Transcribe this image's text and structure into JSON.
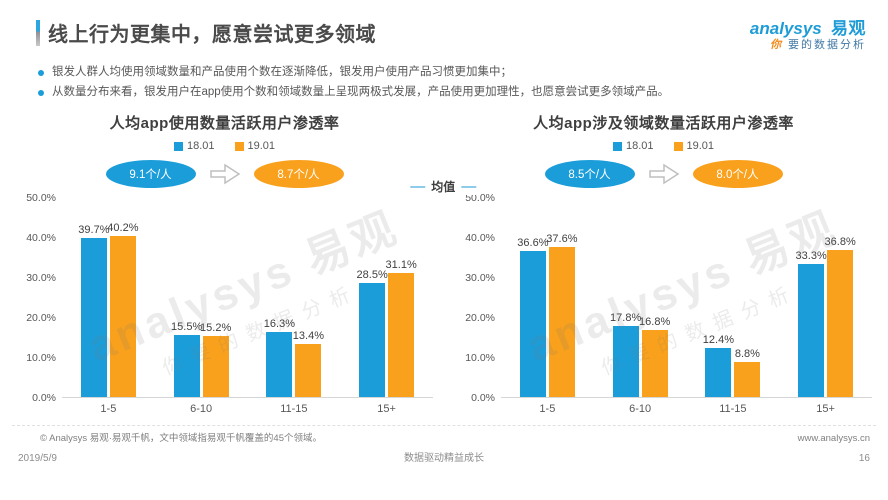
{
  "header": {
    "title": "线上行为更集中，愿意尝试更多领域",
    "logo": {
      "name_en": "analysys",
      "name_cn": "易观",
      "tagline_first": "你",
      "tagline_rest": "要的数据分析"
    }
  },
  "bullets": [
    "银发人群人均使用领域数量和产品使用个数在逐渐降低，银发用户使用产品习惯更加集中；",
    "从数量分布来看，银发用户在app使用个数和领域数量上呈现两极式发展，产品使用更加理性，也愿意尝试更多领域产品。"
  ],
  "mean_legend": "均值",
  "colors": {
    "blue": "#1b9dd9",
    "orange": "#f9a11c"
  },
  "watermark": {
    "line1": "analysys 易观",
    "line2": "你要的数据分析"
  },
  "chart_data": [
    {
      "type": "bar",
      "title": "人均app使用数量活跃用户渗透率",
      "categories": [
        "1-5",
        "6-10",
        "11-15",
        "15+"
      ],
      "series": [
        {
          "name": "18.01",
          "color": "#1b9dd9",
          "values": [
            39.7,
            15.5,
            16.3,
            28.5
          ]
        },
        {
          "name": "19.01",
          "color": "#f9a11c",
          "values": [
            40.2,
            15.2,
            13.4,
            31.1
          ]
        }
      ],
      "ylabel": "活跃用户渗透率",
      "ylim": [
        0,
        50
      ],
      "yticks": [
        "0.0%",
        "10.0%",
        "20.0%",
        "30.0%",
        "40.0%",
        "50.0%"
      ],
      "legend_position": "top",
      "grid": false,
      "average_from": "9.1个/人",
      "average_to": "8.7个/人"
    },
    {
      "type": "bar",
      "title": "人均app涉及领域数量活跃用户渗透率",
      "categories": [
        "1-5",
        "6-10",
        "11-15",
        "15+"
      ],
      "series": [
        {
          "name": "18.01",
          "color": "#1b9dd9",
          "values": [
            36.6,
            17.8,
            12.4,
            33.3
          ]
        },
        {
          "name": "19.01",
          "color": "#f9a11c",
          "values": [
            37.6,
            16.8,
            8.8,
            36.8
          ]
        }
      ],
      "ylabel": "活跃用户渗透率",
      "ylim": [
        0,
        50
      ],
      "yticks": [
        "0.0%",
        "10.0%",
        "20.0%",
        "30.0%",
        "40.0%",
        "50.0%"
      ],
      "legend_position": "top",
      "grid": false,
      "average_from": "8.5个/人",
      "average_to": "8.0个/人"
    }
  ],
  "footer": {
    "note": "© Analysys 易观·易观千帆，文中领域指易观千帆覆盖的45个领域。",
    "date": "2019/5/9",
    "slogan": "数据驱动精益成长",
    "website": "www.analysys.cn",
    "page": "16"
  }
}
